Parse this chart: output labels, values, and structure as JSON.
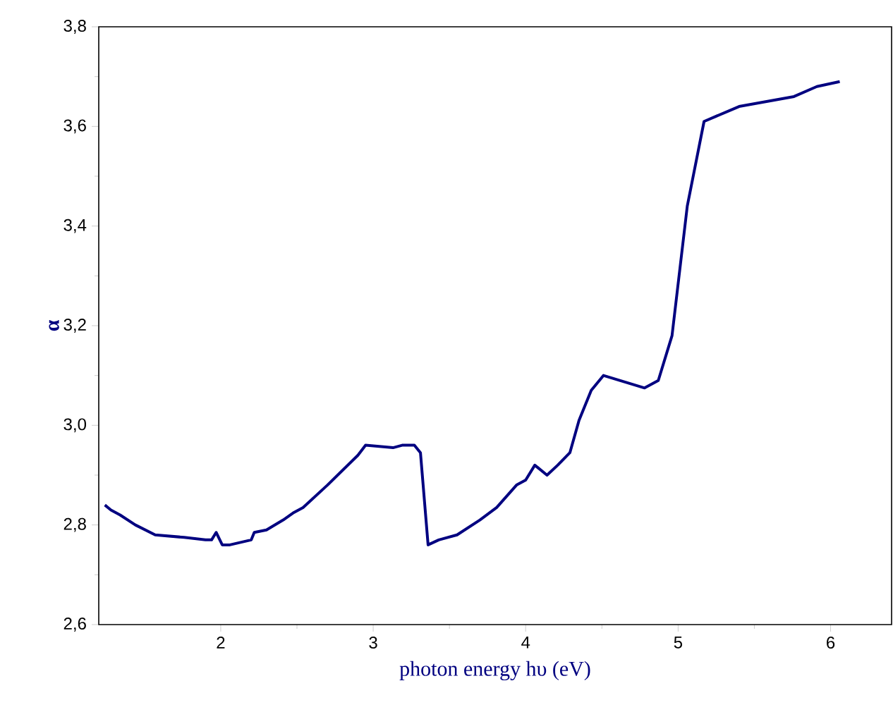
{
  "chart_data": {
    "type": "line",
    "xlabel": "photon energy hυ (eV)",
    "ylabel": "α",
    "series": [
      {
        "color": "#000080",
        "x": [
          1.24,
          1.28,
          1.34,
          1.44,
          1.57,
          1.76,
          1.9,
          1.94,
          1.97,
          2.01,
          2.06,
          2.2,
          2.22,
          2.3,
          2.41,
          2.48,
          2.54,
          2.7,
          2.9,
          2.95,
          3.13,
          3.19,
          3.27,
          3.31,
          3.36,
          3.43,
          3.55,
          3.7,
          3.81,
          3.94,
          4.0,
          4.06,
          4.14,
          4.21,
          4.29,
          4.35,
          4.43,
          4.51,
          4.78,
          4.87,
          4.96,
          5.06,
          5.17,
          5.4,
          5.76,
          5.91,
          6.06
        ],
        "values": [
          2.84,
          2.83,
          2.82,
          2.8,
          2.78,
          2.775,
          2.77,
          2.77,
          2.785,
          2.76,
          2.76,
          2.77,
          2.785,
          2.79,
          2.81,
          2.825,
          2.835,
          2.88,
          2.94,
          2.96,
          2.955,
          2.96,
          2.96,
          2.945,
          2.76,
          2.77,
          2.78,
          2.81,
          2.835,
          2.88,
          2.89,
          2.92,
          2.9,
          2.92,
          2.945,
          3.01,
          3.07,
          3.1,
          3.075,
          3.09,
          3.18,
          3.44,
          3.61,
          3.64,
          3.66,
          3.68,
          3.69
        ]
      }
    ],
    "xlim": [
      1.2,
      6.4
    ],
    "ylim": [
      2.6,
      3.8
    ],
    "xticks": [
      2,
      3,
      4,
      5,
      6
    ],
    "yticks": [
      {
        "value": 2.6,
        "label": "2,6"
      },
      {
        "value": 2.8,
        "label": "2,8"
      },
      {
        "value": 3.0,
        "label": "3,0"
      },
      {
        "value": 3.2,
        "label": "3,2"
      },
      {
        "value": 3.4,
        "label": "3,4"
      },
      {
        "value": 3.6,
        "label": "3,6"
      },
      {
        "value": 3.8,
        "label": "3,8"
      }
    ],
    "grid": false,
    "marker": "none",
    "line_style": "solid"
  }
}
